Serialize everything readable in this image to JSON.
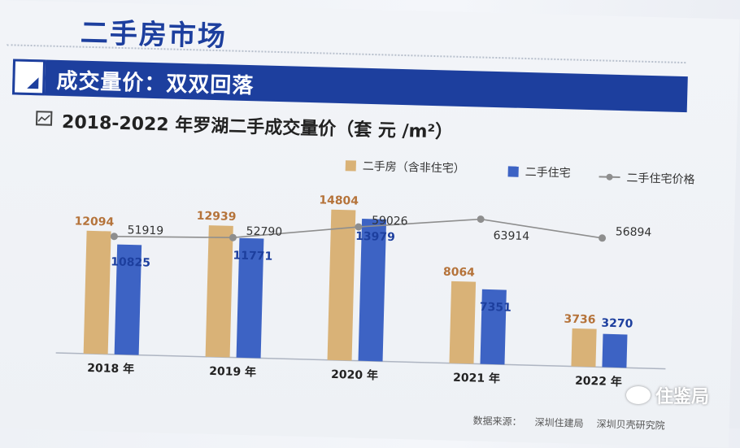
{
  "header": {
    "section_title": "二手房市场",
    "banner_title": "成交量价：双双回落",
    "chart_title": "2018-2022 年罗湖二手成交量价（套 元 /m²）"
  },
  "legend": {
    "series_a": "二手房（含非住宅）",
    "series_b": "二手住宅",
    "series_c": "二手住宅价格"
  },
  "colors": {
    "series_a": "#d9b277",
    "series_b": "#3d63c4",
    "series_c": "#8e8e8e",
    "banner": "#1d3f9e",
    "label_a": "#b5733a",
    "label_b": "#1d3f9e"
  },
  "chart_data": {
    "type": "bar",
    "categories": [
      "2018 年",
      "2019 年",
      "2020 年",
      "2021 年",
      "2022 年"
    ],
    "series": [
      {
        "name": "二手房（含非住宅）",
        "type": "bar",
        "values": [
          12094,
          12939,
          14804,
          8064,
          3736
        ]
      },
      {
        "name": "二手住宅",
        "type": "bar",
        "values": [
          10825,
          11771,
          13979,
          7351,
          3270
        ]
      },
      {
        "name": "二手住宅价格",
        "type": "line",
        "values": [
          51919,
          52790,
          59026,
          63914,
          56894
        ]
      }
    ],
    "legend_position": "top-right",
    "grid": false
  },
  "footer": {
    "source_label": "数据来源：",
    "source_1": "深圳住建局",
    "source_2": "深圳贝壳研究院",
    "watermark": "住鉴局"
  }
}
